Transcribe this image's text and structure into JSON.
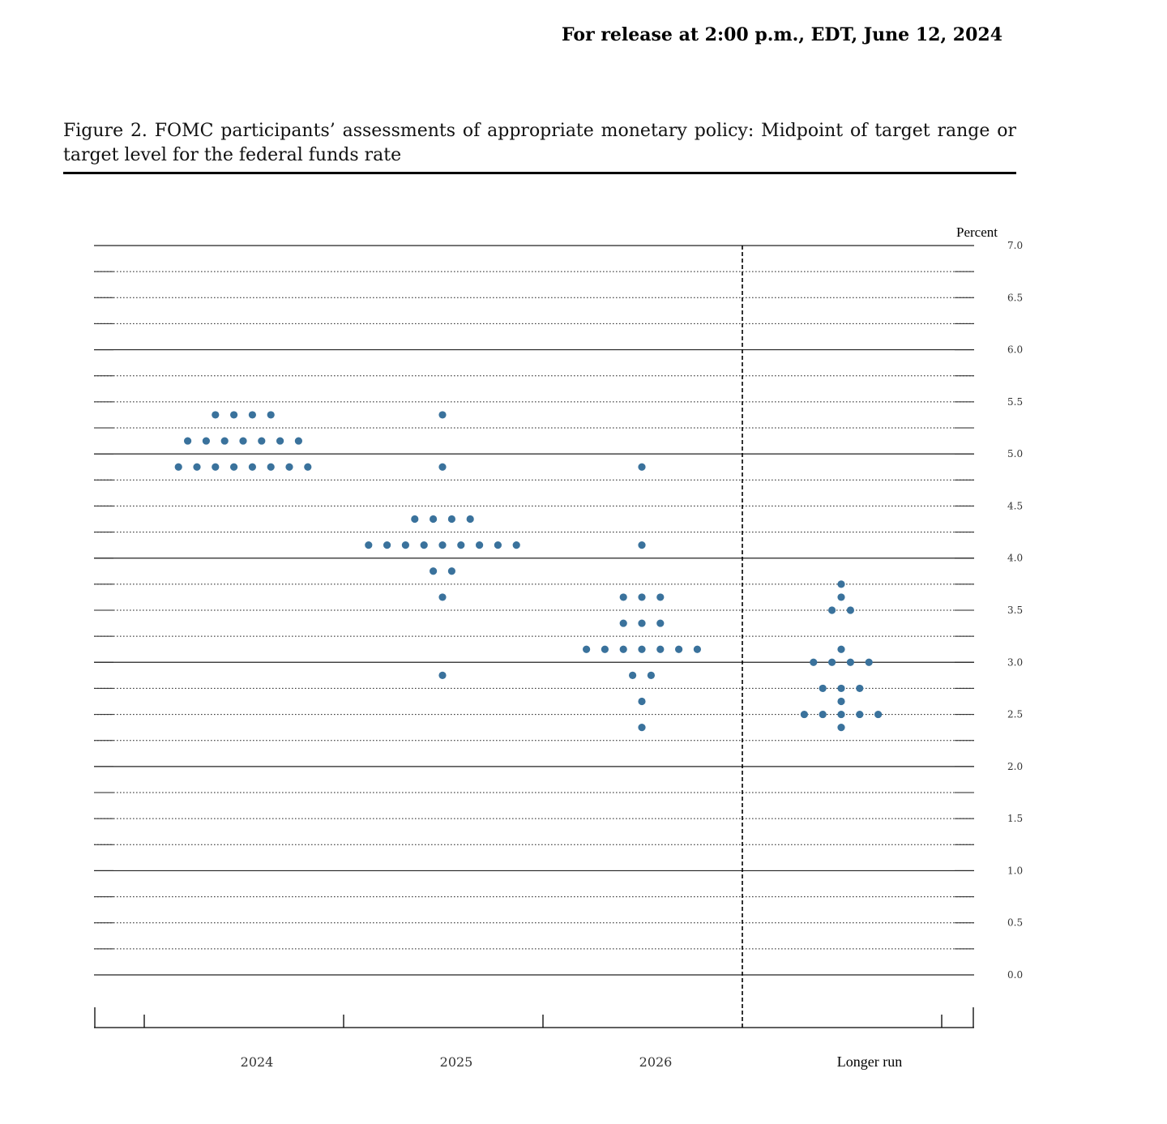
{
  "header": {
    "release_text": "For release at 2:00 p.m., EDT, June 12, 2024"
  },
  "figure": {
    "title": "Figure 2.  FOMC participants’ assessments of appropriate monetary policy:  Midpoint of target range or target level for the federal funds rate"
  },
  "chart_data": {
    "type": "scatter",
    "unit_label": "Percent",
    "ylim": [
      0,
      7
    ],
    "y_ticks": [
      "0.0",
      "0.5",
      "1.0",
      "1.5",
      "2.0",
      "2.5",
      "3.0",
      "3.5",
      "4.0",
      "4.5",
      "5.0",
      "5.5",
      "6.0",
      "6.5",
      "7.0"
    ],
    "grid": "dotted at every 0.25, solid at every 1.0",
    "categories": [
      "2024",
      "2025",
      "2026",
      "Longer run"
    ],
    "marker_color": "#3a729c",
    "dots": {
      "2024": [
        {
          "value": 5.375,
          "count": 4
        },
        {
          "value": 5.125,
          "count": 7
        },
        {
          "value": 4.875,
          "count": 8
        }
      ],
      "2025": [
        {
          "value": 5.375,
          "count": 1
        },
        {
          "value": 4.875,
          "count": 1
        },
        {
          "value": 4.375,
          "count": 4
        },
        {
          "value": 4.125,
          "count": 9
        },
        {
          "value": 3.875,
          "count": 2
        },
        {
          "value": 3.625,
          "count": 1
        },
        {
          "value": 2.875,
          "count": 1
        }
      ],
      "2026": [
        {
          "value": 4.875,
          "count": 1
        },
        {
          "value": 4.125,
          "count": 1
        },
        {
          "value": 3.625,
          "count": 3
        },
        {
          "value": 3.375,
          "count": 3
        },
        {
          "value": 3.125,
          "count": 7
        },
        {
          "value": 2.875,
          "count": 2
        },
        {
          "value": 2.625,
          "count": 1
        },
        {
          "value": 2.375,
          "count": 1
        }
      ],
      "Longer run": [
        {
          "value": 3.75,
          "count": 1
        },
        {
          "value": 3.625,
          "count": 1
        },
        {
          "value": 3.5,
          "count": 2
        },
        {
          "value": 3.125,
          "count": 1
        },
        {
          "value": 3.0,
          "count": 4
        },
        {
          "value": 2.75,
          "count": 3
        },
        {
          "value": 2.625,
          "count": 1
        },
        {
          "value": 2.5,
          "count": 5
        },
        {
          "value": 2.375,
          "count": 1
        }
      ]
    }
  }
}
